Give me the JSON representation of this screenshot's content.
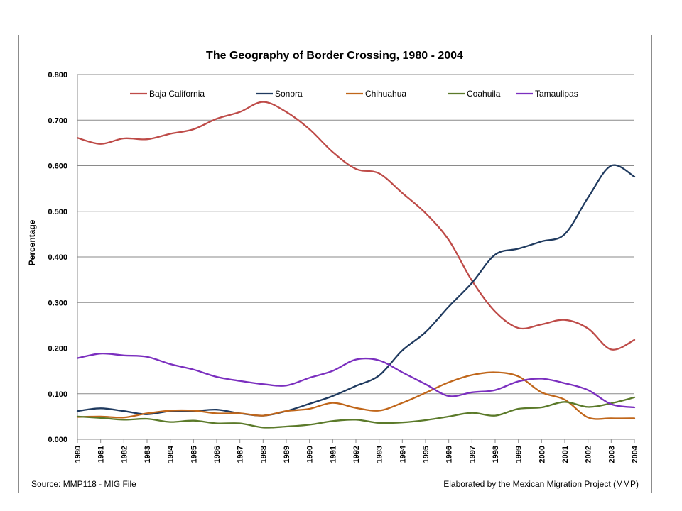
{
  "chart_data": {
    "type": "line",
    "title": "The Geography of Border Crossing, 1980 - 2004",
    "ylabel": "Percentage",
    "xlabel": "",
    "ylim": [
      0,
      0.8
    ],
    "y_ticks": [
      "0.000",
      "0.100",
      "0.200",
      "0.300",
      "0.400",
      "0.500",
      "0.600",
      "0.700",
      "0.800"
    ],
    "x": [
      "1980",
      "1981",
      "1982",
      "1983",
      "1984",
      "1985",
      "1986",
      "1987",
      "1988",
      "1989",
      "1990",
      "1991",
      "1992",
      "1993",
      "1994",
      "1995",
      "1996",
      "1997",
      "1998",
      "1999",
      "2000",
      "2001",
      "2002",
      "2003",
      "2004"
    ],
    "grid": "horizontal",
    "legend_position": "top",
    "series": [
      {
        "name": "Baja California",
        "color": "#be4b48",
        "values": [
          0.661,
          0.648,
          0.66,
          0.658,
          0.67,
          0.68,
          0.703,
          0.718,
          0.74,
          0.718,
          0.68,
          0.63,
          0.593,
          0.583,
          0.54,
          0.496,
          0.437,
          0.348,
          0.28,
          0.244,
          0.252,
          0.262,
          0.243,
          0.197,
          0.218
        ]
      },
      {
        "name": "Sonora",
        "color": "#1f3a5f",
        "values": [
          0.062,
          0.068,
          0.062,
          0.055,
          0.062,
          0.062,
          0.065,
          0.057,
          0.052,
          0.062,
          0.078,
          0.095,
          0.117,
          0.14,
          0.195,
          0.235,
          0.291,
          0.343,
          0.405,
          0.418,
          0.434,
          0.45,
          0.53,
          0.6,
          0.576
        ]
      },
      {
        "name": "Chihuahua",
        "color": "#c0661a",
        "values": [
          0.049,
          0.05,
          0.048,
          0.057,
          0.063,
          0.063,
          0.057,
          0.057,
          0.052,
          0.062,
          0.067,
          0.08,
          0.069,
          0.063,
          0.08,
          0.102,
          0.125,
          0.141,
          0.147,
          0.138,
          0.103,
          0.087,
          0.048,
          0.046,
          0.046
        ]
      },
      {
        "name": "Coahuila",
        "color": "#5b7a2a",
        "values": [
          0.05,
          0.047,
          0.043,
          0.045,
          0.038,
          0.041,
          0.035,
          0.035,
          0.026,
          0.028,
          0.032,
          0.04,
          0.043,
          0.036,
          0.037,
          0.042,
          0.05,
          0.058,
          0.052,
          0.067,
          0.07,
          0.082,
          0.071,
          0.079,
          0.092
        ]
      },
      {
        "name": "Tamaulipas",
        "color": "#7b2fbf",
        "values": [
          0.178,
          0.188,
          0.184,
          0.181,
          0.165,
          0.153,
          0.137,
          0.128,
          0.121,
          0.118,
          0.135,
          0.15,
          0.175,
          0.173,
          0.147,
          0.121,
          0.095,
          0.103,
          0.108,
          0.127,
          0.133,
          0.123,
          0.108,
          0.077,
          0.07
        ]
      }
    ]
  },
  "footer": {
    "source": "Source: MMP118 - MIG File",
    "credit": "Elaborated by the Mexican Migration Project (MMP)"
  }
}
